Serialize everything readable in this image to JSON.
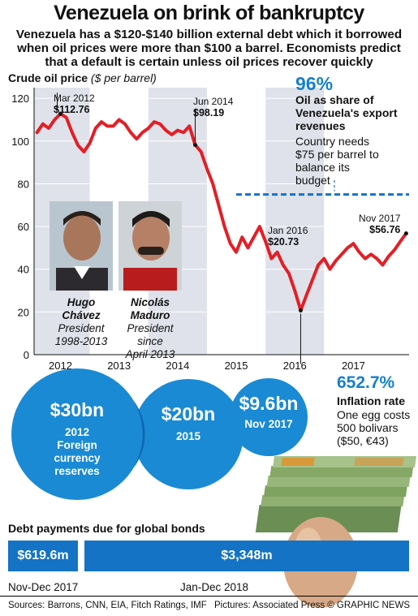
{
  "title": "Venezuela on brink of bankruptcy",
  "subtitle": "Venezuela has a $120-$140 billion external debt which it borrowed when oil prices were more than $100 a barrel. Economists predict that a default is certain unless oil prices recover quickly",
  "colors": {
    "accent": "#1680cc",
    "line": "#e41e26",
    "bar": "#1473c4",
    "dashed": "#1473c4"
  },
  "chart_data": {
    "type": "line",
    "title": "Crude oil price",
    "title_unit": "($ per barrel)",
    "ylim": [
      0,
      125
    ],
    "yticks": [
      "120",
      "100",
      "80",
      "60",
      "40",
      "20",
      "0"
    ],
    "xticks": [
      "2012",
      "2013",
      "2014",
      "2015",
      "2016",
      "2017"
    ],
    "series": [
      {
        "x": [
          2011.6,
          2011.7,
          2011.8,
          2011.9,
          2012.0,
          2012.1,
          2012.2,
          2012.3,
          2012.4,
          2012.5,
          2012.6,
          2012.7,
          2012.8,
          2012.9,
          2013.0,
          2013.1,
          2013.2,
          2013.3,
          2013.4,
          2013.5,
          2013.6,
          2013.7,
          2013.8,
          2013.9,
          2014.0,
          2014.1,
          2014.2,
          2014.3,
          2014.4,
          2014.5,
          2014.6,
          2014.7,
          2014.8,
          2014.9,
          2015.0,
          2015.1,
          2015.2,
          2015.3,
          2015.4,
          2015.5,
          2015.6,
          2015.7,
          2015.8,
          2015.9,
          2016.0,
          2016.1,
          2016.2,
          2016.3,
          2016.4,
          2016.5,
          2016.6,
          2016.7,
          2016.8,
          2016.9,
          2017.0,
          2017.1,
          2017.2,
          2017.3,
          2017.4,
          2017.5,
          2017.6,
          2017.7,
          2017.8,
          2017.9
        ],
        "y": [
          104,
          108,
          106,
          110,
          112.76,
          111,
          104,
          98,
          95,
          99,
          106,
          109,
          107,
          107,
          110,
          108,
          104,
          101,
          104,
          106,
          109,
          108,
          105,
          103,
          105,
          104,
          107,
          98.19,
          95,
          87,
          80,
          70,
          60,
          52,
          48,
          55,
          50,
          55,
          60,
          53,
          45,
          48,
          42,
          38,
          30,
          20.73,
          28,
          35,
          42,
          45,
          40,
          44,
          47,
          50,
          52,
          48,
          45,
          47,
          45,
          42,
          46,
          49,
          53,
          56.76
        ]
      }
    ],
    "reference_line": {
      "value": 75,
      "label": "Country needs $75 per barrel to balance its budget"
    },
    "annotations": [
      {
        "date": "Mar 2012",
        "value": "$112.76",
        "x": 2012.0,
        "y": 112.76
      },
      {
        "date": "Jun 2014",
        "value": "$98.19",
        "x": 2014.3,
        "y": 98.19
      },
      {
        "date": "Jan 2016",
        "value": "$20.73",
        "x": 2016.1,
        "y": 20.73
      },
      {
        "date": "Nov 2017",
        "value": "$56.76",
        "x": 2017.9,
        "y": 56.76
      }
    ]
  },
  "oil_share": {
    "value": "96%",
    "text": "Oil as share of Venezuela's export revenues"
  },
  "people": [
    {
      "name1": "Hugo",
      "name2": "Chávez",
      "role": "President",
      "term": "1998-2013"
    },
    {
      "name1": "Nicolás",
      "name2": "Maduro",
      "role": "President since",
      "term": "April 2013"
    }
  ],
  "reserves": {
    "label": "Foreign currency reserves",
    "items": [
      {
        "value": "$30bn",
        "year": "2012",
        "extra1": "Foreign",
        "extra2": "currency",
        "extra3": "reserves"
      },
      {
        "value": "$20bn",
        "year": "2015"
      },
      {
        "value": "$9.6bn",
        "year": "Nov 2017"
      }
    ]
  },
  "inflation": {
    "value": "652.7%",
    "label": "Inflation rate",
    "line1": "One egg costs",
    "line2": "500 bolivars",
    "line3": "($50, €43)"
  },
  "debt": {
    "heading": "Debt payments due for global bonds",
    "items": [
      {
        "value": "$619.6m",
        "period": "Nov-Dec 2017"
      },
      {
        "value": "$3,348m",
        "period": "Jan-Dec 2018"
      }
    ]
  },
  "watermark": "GRAPHIC NEWS",
  "footer": {
    "sources": "Sources: Barrons, CNN, EIA, Fitch Ratings, IMF",
    "pictures": "Pictures: Associated Press",
    "credit": "© GRAPHIC NEWS"
  }
}
